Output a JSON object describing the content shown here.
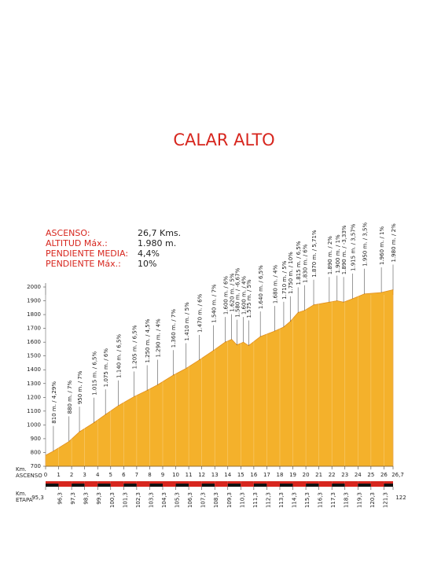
{
  "chart_data": {
    "type": "area",
    "title": "CALAR ALTO",
    "stats": [
      {
        "label": "ASCENSO:",
        "value": "26,7 Kms."
      },
      {
        "label": "ALTITUD Máx.:",
        "value": "1.980 m."
      },
      {
        "label": "PENDIENTE MEDIA:",
        "value": "4,4%"
      },
      {
        "label": "PENDIENTE Máx.:",
        "value": "10%"
      }
    ],
    "x_label": "Km.",
    "x_sublabel": "ASCENSO",
    "x2_label": "Km.",
    "x2_sublabel": "ETAPA",
    "x": [
      0,
      0.6,
      1.8,
      2.6,
      3.7,
      4.6,
      5.6,
      6.8,
      7.8,
      8.6,
      9.8,
      10.8,
      11.8,
      12.9,
      13.8,
      14.3,
      14.7,
      15.2,
      15.6,
      16.5,
      17.6,
      18.3,
      18.8,
      19.4,
      19.9,
      20.6,
      21.8,
      22.4,
      22.9,
      23.6,
      24.5,
      25.8,
      26.7
    ],
    "series": [
      {
        "name": "Altitud",
        "color": "#f4b12b",
        "values": [
          780,
          810,
          880,
          950,
          1015,
          1075,
          1140,
          1205,
          1250,
          1290,
          1360,
          1410,
          1470,
          1540,
          1600,
          1620,
          1580,
          1600,
          1575,
          1640,
          1680,
          1710,
          1750,
          1815,
          1830,
          1870,
          1890,
          1900,
          1890,
          1915,
          1950,
          1960,
          1980
        ],
        "value_labels": [
          null,
          "810 m. / 4,29%",
          "880 m. / 7%",
          "950 m. / 7%",
          "1.015 m. / 6,5%",
          "1.075 m. / 6%",
          "1.140 m. / 6,5%",
          "1.205 m. / 6,5%",
          "1.250 m. / 4,5%",
          "1.290 m. / 4%",
          "1.360 m. / 7%",
          "1.410 m. / 5%",
          "1.470 m. / 6%",
          "1.540 m. / 7%",
          "1.600 m. / 6%",
          "1.620 m. / 5%",
          "1.580 m. / -6,67%",
          "1.600 m. / 4%",
          "1.575 m. / 5%",
          "1.640 m. / 6,5%",
          "1.680 m. / 4%",
          "1.710 m. / 5%",
          "1.750 m. / 10%",
          "1.815 m. / 6,5%",
          "1.830 m. / 6%",
          "1.870 m. / 5,71%",
          "1.890 m. / 2%",
          "1.900 m. / 1%",
          "1.890 m. / -3,33%",
          "1.915 m. / 3,57%",
          "1.950 m. / 3,5%",
          "1.960 m. / 1%",
          "1.980 m. / 2%"
        ]
      }
    ],
    "xlim": [
      0,
      26.7
    ],
    "xticks": [
      0,
      1,
      2,
      3,
      4,
      5,
      6,
      7,
      8,
      9,
      10,
      11,
      12,
      13,
      14,
      15,
      16,
      17,
      18,
      19,
      20,
      21,
      22,
      23,
      24,
      25,
      26,
      {
        "value": 26.7,
        "label": "26,7"
      }
    ],
    "x2lim": [
      95.3,
      122
    ],
    "x2ticks": [
      {
        "value": 95.3,
        "label": "95,3"
      },
      {
        "value": 96.3,
        "label": "96,3"
      },
      {
        "value": 97.3,
        "label": "97,3"
      },
      {
        "value": 98.3,
        "label": "98,3"
      },
      {
        "value": 99.3,
        "label": "99,3"
      },
      {
        "value": 100.3,
        "label": "100,3"
      },
      {
        "value": 101.3,
        "label": "101,3"
      },
      {
        "value": 102.3,
        "label": "102,3"
      },
      {
        "value": 103.3,
        "label": "103,3"
      },
      {
        "value": 104.3,
        "label": "104,3"
      },
      {
        "value": 105.3,
        "label": "105,3"
      },
      {
        "value": 106.3,
        "label": "106,3"
      },
      {
        "value": 107.3,
        "label": "107,3"
      },
      {
        "value": 108.3,
        "label": "108,3"
      },
      {
        "value": 109.3,
        "label": "109,3"
      },
      {
        "value": 110.3,
        "label": "110,3"
      },
      {
        "value": 111.3,
        "label": "111,3"
      },
      {
        "value": 112.3,
        "label": "112,3"
      },
      {
        "value": 113.3,
        "label": "113,3"
      },
      {
        "value": 114.3,
        "label": "114,3"
      },
      {
        "value": 115.3,
        "label": "115,3"
      },
      {
        "value": 116.3,
        "label": "116,3"
      },
      {
        "value": 117.3,
        "label": "117,3"
      },
      {
        "value": 118.3,
        "label": "118,3"
      },
      {
        "value": 119.3,
        "label": "119,3"
      },
      {
        "value": 120.3,
        "label": "120,3"
      },
      {
        "value": 121.3,
        "label": "121,3"
      },
      122
    ],
    "ylim": [
      700,
      2000
    ],
    "yticks": [
      700,
      800,
      900,
      1000,
      1100,
      1200,
      1300,
      1400,
      1500,
      1600,
      1700,
      1800,
      1900,
      2000
    ]
  }
}
